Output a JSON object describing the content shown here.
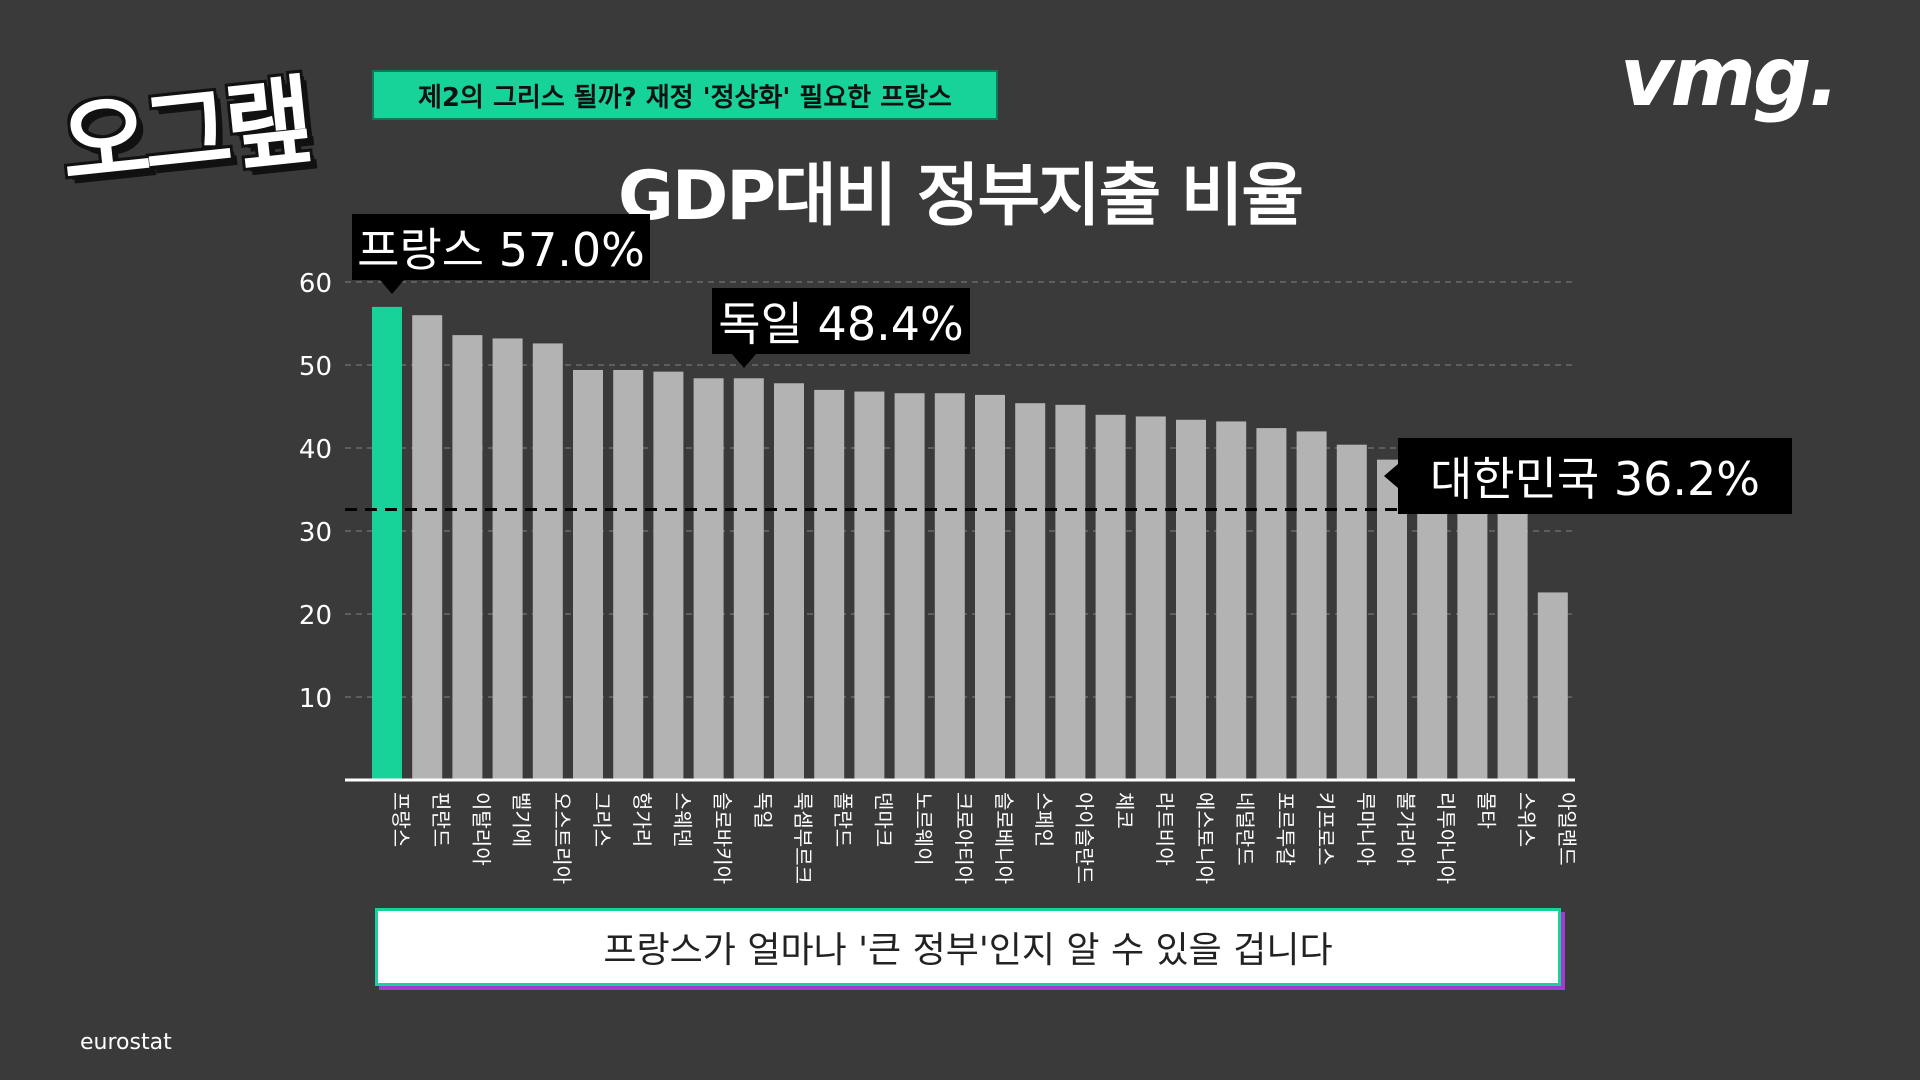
{
  "logo": {
    "text": "오그랲",
    "icon": "cursor-arrow-icon"
  },
  "subtitle": "제2의 그리스 될까? 재정 '정상화' 필요한 프랑스",
  "brand": "vmg.",
  "title": "GDP대비 정부지출 비율",
  "caption": "프랑스가 얼마나 '큰 정부'인지 알 수 있을 겁니다",
  "source": "eurostat",
  "colors": {
    "highlight": "#17d39a",
    "bar": "#b3b3b3",
    "background": "#3a3a3a"
  },
  "callouts": {
    "france": "프랑스 57.0%",
    "germany": "독일 48.4%",
    "korea": "대한민국 36.2%"
  },
  "chart_data": {
    "type": "bar",
    "categories": [
      "프랑스",
      "핀란드",
      "이탈리아",
      "벨기에",
      "오스트리아",
      "그리스",
      "헝가리",
      "스웨덴",
      "슬로바키아",
      "독일",
      "룩셈부르크",
      "폴란드",
      "덴마크",
      "노르웨이",
      "크로아티아",
      "슬로베니아",
      "스페인",
      "아이슬란드",
      "체코",
      "라트비아",
      "에스토니아",
      "네덜란드",
      "포르투갈",
      "키프로스",
      "루마니아",
      "불가리아",
      "리투아니아",
      "몰타",
      "스위스",
      "아일랜드"
    ],
    "values": [
      57.0,
      56.0,
      53.6,
      53.2,
      52.6,
      49.4,
      49.4,
      49.2,
      48.4,
      48.4,
      47.8,
      47.0,
      46.8,
      46.6,
      46.6,
      46.4,
      45.4,
      45.2,
      44.0,
      43.8,
      43.4,
      43.2,
      42.4,
      42.0,
      40.4,
      38.6,
      35.0,
      35.0,
      34.5,
      22.6
    ],
    "highlight_index": 0,
    "yticks": [
      10,
      20,
      30,
      40,
      50,
      60
    ],
    "ylim": [
      0,
      62
    ],
    "reference_line": {
      "value": 36.2,
      "label": "대한민국 36.2%"
    },
    "grid": true,
    "title": "GDP대비 정부지출 비율"
  }
}
